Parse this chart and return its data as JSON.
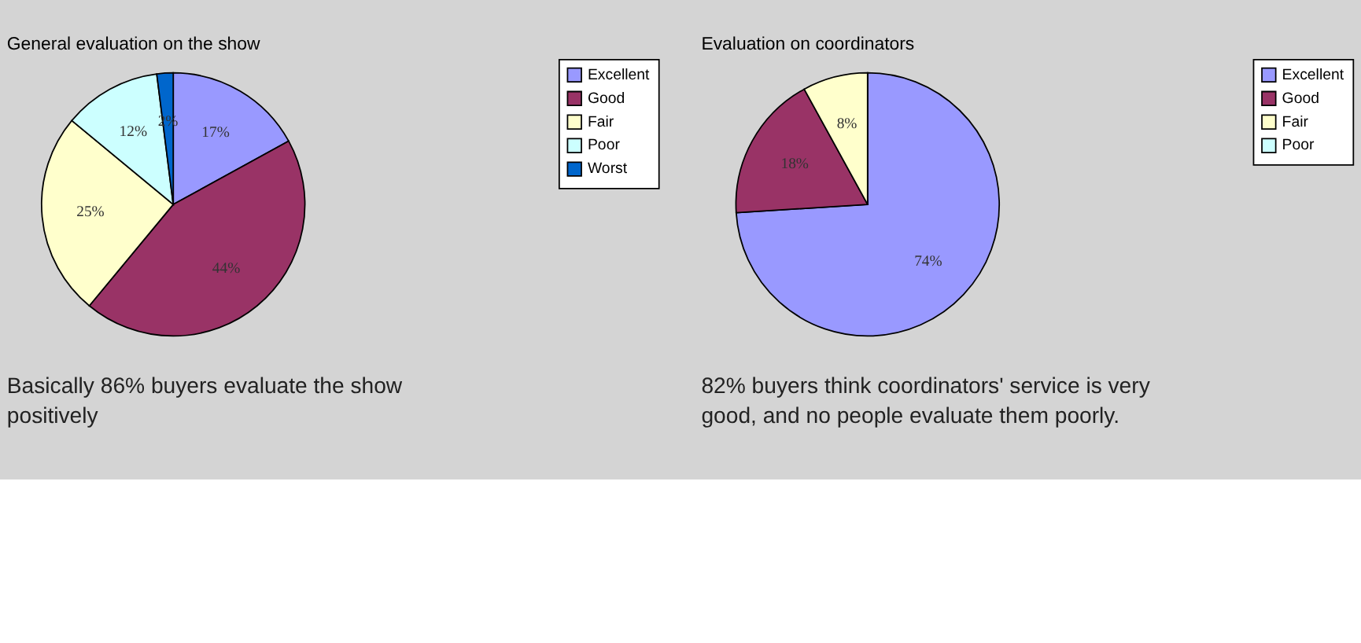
{
  "chart_data": [
    {
      "type": "pie",
      "title": "General evaluation on the show",
      "categories": [
        "Excellent",
        "Good",
        "Fair",
        "Poor",
        "Worst"
      ],
      "values": [
        17,
        44,
        25,
        12,
        2
      ],
      "colors": [
        "#9999ff",
        "#993366",
        "#ffffcc",
        "#ccffff",
        "#0066cc"
      ],
      "value_labels": [
        "17%",
        "44%",
        "25%",
        "12%",
        "2%"
      ],
      "legend": "right",
      "annotations": [
        "Basically 86% buyers evaluate the show positively"
      ]
    },
    {
      "type": "pie",
      "title": "Evaluation on coordinators",
      "categories": [
        "Excellent",
        "Good",
        "Fair",
        "Poor"
      ],
      "values": [
        74,
        18,
        8,
        0
      ],
      "colors": [
        "#9999ff",
        "#993366",
        "#ffffcc",
        "#ccffff"
      ],
      "value_labels": [
        "74%",
        "18%",
        "8%",
        null
      ],
      "legend": "right",
      "annotations": [
        "82% buyers think coordinators' service is very good, and no people evaluate them poorly."
      ]
    }
  ]
}
